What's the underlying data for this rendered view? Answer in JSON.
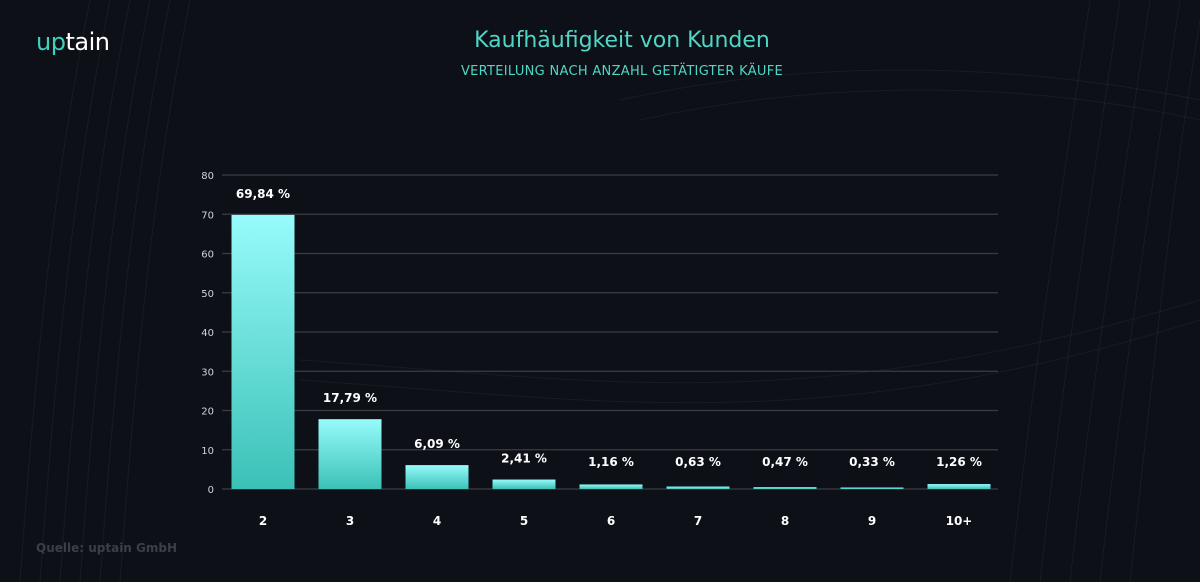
{
  "brand": {
    "logo_accent": "up",
    "logo_rest": "tain",
    "accent_color": "#3ed0bf"
  },
  "header": {
    "title": "Kaufhäufigkeit von Kunden",
    "subtitle": "VERTEILUNG NACH ANZAHL GETÄTIGTER KÄUFE"
  },
  "footer": {
    "source": "Quelle: uptain GmbH"
  },
  "chart_data": {
    "type": "bar",
    "title": "Kaufhäufigkeit von Kunden",
    "subtitle": "VERTEILUNG NACH ANZAHL GETÄTIGTER KÄUFE",
    "xlabel": "",
    "ylabel": "",
    "categories": [
      "2",
      "3",
      "4",
      "5",
      "6",
      "7",
      "8",
      "9",
      "10+"
    ],
    "values": [
      69.84,
      17.79,
      6.09,
      2.41,
      1.16,
      0.63,
      0.47,
      0.33,
      1.26
    ],
    "data_labels": [
      "69,84  %",
      "17,79 %",
      "6,09 %",
      "2,41 %",
      "1,16 %",
      "0,63 %",
      "0,47 %",
      "0,33 %",
      "1,26 %"
    ],
    "ylim": [
      0,
      80
    ],
    "yticks": [
      0,
      10,
      20,
      30,
      40,
      50,
      60,
      70,
      80
    ],
    "grid": true,
    "legend": "none",
    "bar_color_top": "#97fbfb",
    "bar_color_bottom": "#3bc1b7"
  }
}
